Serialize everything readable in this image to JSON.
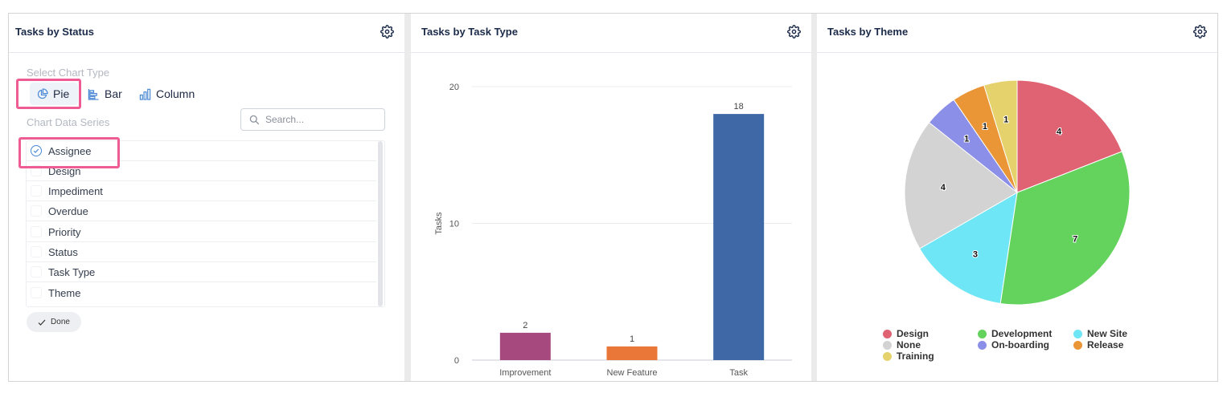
{
  "panels": {
    "status": {
      "title": "Tasks by Status"
    },
    "task_type": {
      "title": "Tasks by Task Type"
    },
    "theme": {
      "title": "Tasks by Theme"
    }
  },
  "chart_settings": {
    "select_chart_type_label": "Select Chart Type",
    "chart_types": [
      {
        "label": "Pie",
        "icon": "pie-chart-icon",
        "selected": true
      },
      {
        "label": "Bar",
        "icon": "bar-chart-icon",
        "selected": false
      },
      {
        "label": "Column",
        "icon": "column-chart-icon",
        "selected": false
      }
    ],
    "data_series_label": "Chart Data Series",
    "search_placeholder": "Search...",
    "series": [
      {
        "label": "Assignee",
        "checked": true
      },
      {
        "label": "Design",
        "checked": false
      },
      {
        "label": "Impediment",
        "checked": false
      },
      {
        "label": "Overdue",
        "checked": false
      },
      {
        "label": "Priority",
        "checked": false
      },
      {
        "label": "Status",
        "checked": false
      },
      {
        "label": "Task Type",
        "checked": false
      },
      {
        "label": "Theme",
        "checked": false
      }
    ],
    "done_label": "Done"
  },
  "chart_data": [
    {
      "type": "bar",
      "title": "Tasks by Task Type",
      "categories": [
        "Improvement",
        "New Feature",
        "Task"
      ],
      "values": [
        2,
        1,
        18
      ],
      "colors": [
        "#a6497e",
        "#ea7738",
        "#3f68a6"
      ],
      "ylabel": "Tasks",
      "ylim": [
        0,
        20
      ],
      "yticks": [
        0,
        10,
        20
      ],
      "grid": true
    },
    {
      "type": "pie",
      "title": "Tasks by Theme",
      "slices": [
        {
          "label": "Design",
          "value": 4,
          "color": "#e06373"
        },
        {
          "label": "Development",
          "value": 7,
          "color": "#63d35e"
        },
        {
          "label": "New Site",
          "value": 3,
          "color": "#6fe6f5"
        },
        {
          "label": "None",
          "value": 4,
          "color": "#d3d3d3"
        },
        {
          "label": "On-boarding",
          "value": 1,
          "color": "#8c8fe8"
        },
        {
          "label": "Release",
          "value": 1,
          "color": "#ea9536"
        },
        {
          "label": "Training",
          "value": 1,
          "color": "#e5d26c"
        }
      ],
      "legend_position": "bottom"
    }
  ]
}
